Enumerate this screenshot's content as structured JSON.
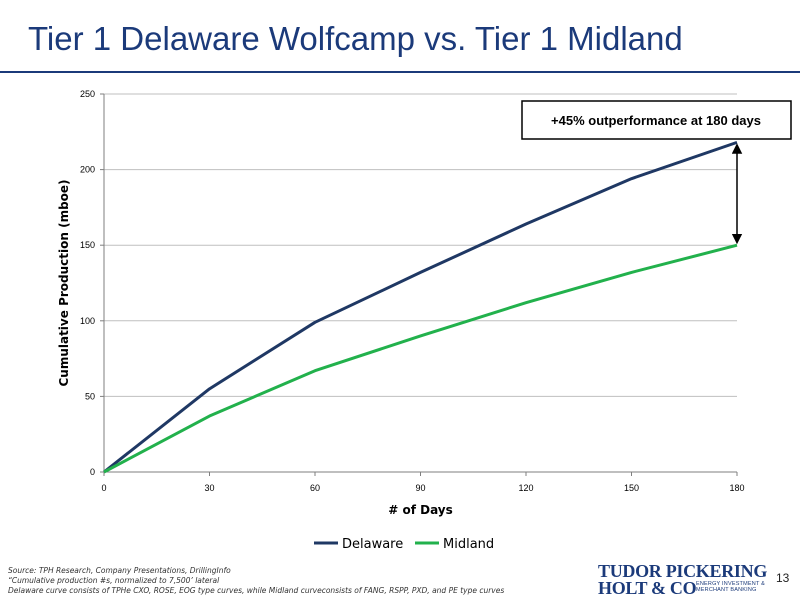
{
  "slide": {
    "title": "Tier 1 Delaware Wolfcamp vs. Tier 1 Midland",
    "page_number": "13",
    "footnotes": [
      "Source:  TPH Research, Company Presentations, DrillingInfo",
      "“Cumulative production #s, normalized to 7,500’ lateral",
      "Delaware curve consists of TPHe CXO, ROSE, EOG type curves, while Midland  curveconsists of FANG, RSPP, PXD, and PE type curves"
    ],
    "logo": {
      "line1": "TUDOR PICKERING",
      "line2": "HOLT & CO",
      "tagline": "ENERGY INVESTMENT & MERCHANT BANKING"
    }
  },
  "chart_data": {
    "type": "line",
    "title": "",
    "xlabel": "# of Days",
    "ylabel": "Cumulative Production (mboe)",
    "x": [
      0,
      30,
      60,
      90,
      120,
      150,
      180
    ],
    "xlim": [
      0,
      180
    ],
    "ylim": [
      0,
      250
    ],
    "x_ticks": [
      0,
      30,
      60,
      90,
      120,
      150,
      180
    ],
    "y_ticks": [
      0,
      50,
      100,
      150,
      200,
      250
    ],
    "grid": "horizontal",
    "legend_position": "bottom",
    "series": [
      {
        "name": "Delaware",
        "color": "#1f3864",
        "values": [
          0,
          55,
          99,
          132,
          164,
          194,
          218
        ]
      },
      {
        "name": "Midland",
        "color": "#22b14c",
        "values": [
          0,
          37,
          67,
          90,
          112,
          132,
          150
        ]
      }
    ],
    "annotation": {
      "text": "+45% outperformance at 180 days",
      "x": 180,
      "y_from": 150,
      "y_to": 218
    }
  }
}
